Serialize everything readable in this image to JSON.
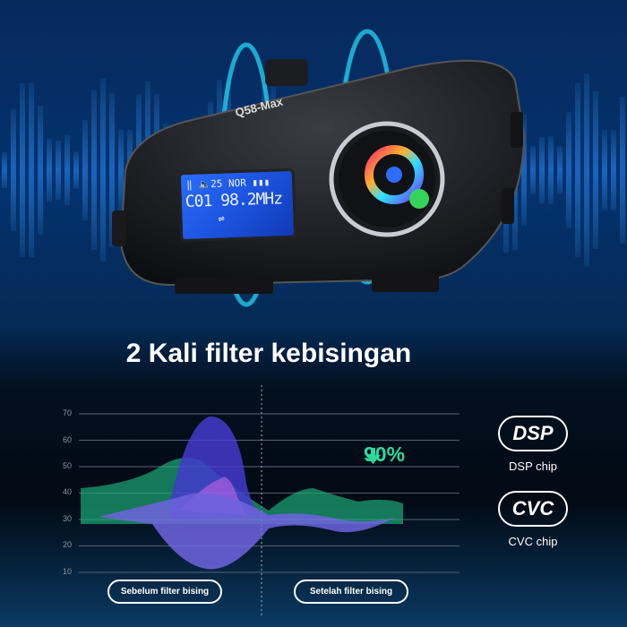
{
  "product": {
    "model": "Q58-Max",
    "lcd": {
      "status_row": "‖ 🔈25 NOR ▮▮▮",
      "volume": "25",
      "channel": "C01",
      "frequency": "98.2MHz",
      "pairing": "⇌"
    }
  },
  "headline": "2 Kali filter kebisingan",
  "chart_data": {
    "type": "area",
    "y_ticks": [
      "70",
      "60",
      "50",
      "40",
      "30",
      "20",
      "10"
    ],
    "ylim": [
      10,
      70
    ],
    "grid": true,
    "annotation": "90%",
    "phases": [
      "Sebelum filter bising",
      "Setelah filter bising"
    ]
  },
  "chips": [
    {
      "badge": "DSP",
      "label": "DSP chip"
    },
    {
      "badge": "CVC",
      "label": "CVC chip"
    }
  ],
  "colors": {
    "accent_green": "#2fd79b",
    "wave_blue": "#1f7bff",
    "blob_purple": "#5a4be8"
  }
}
